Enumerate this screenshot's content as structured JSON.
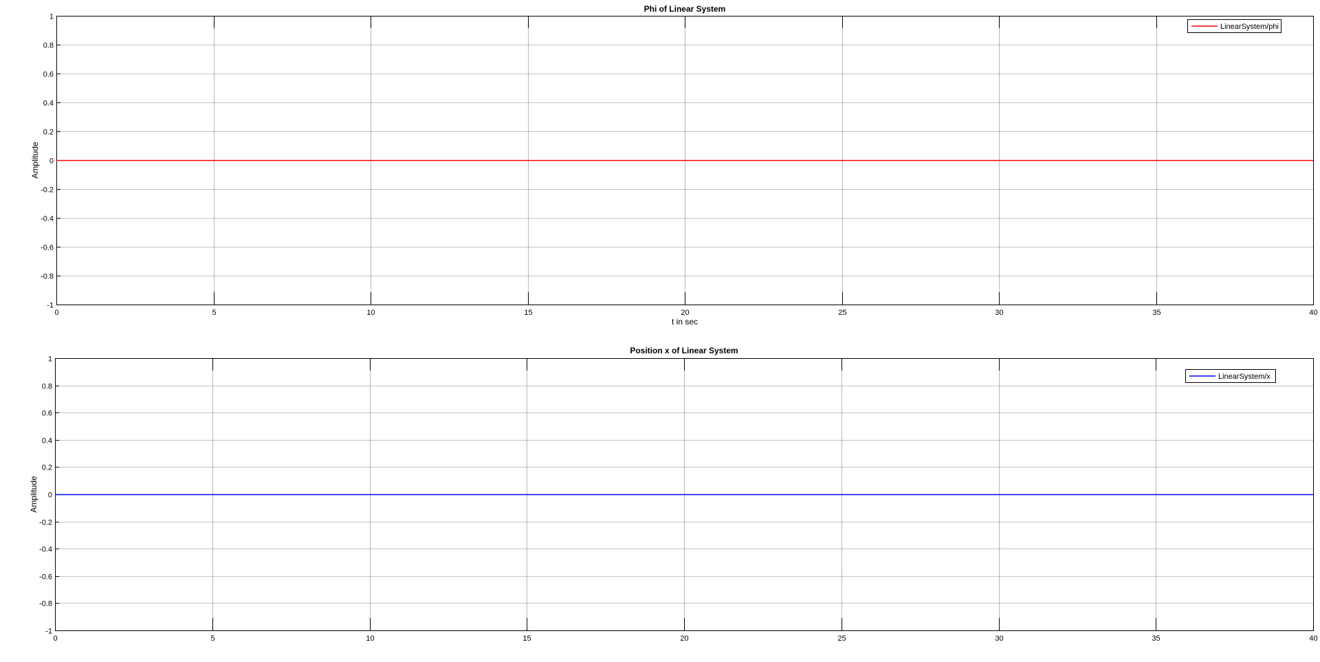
{
  "chart_data": [
    {
      "type": "line",
      "title": "Phi of Linear System",
      "xlabel": "t in sec",
      "ylabel": "Amplitude",
      "xlim": [
        0,
        40
      ],
      "ylim": [
        -1,
        1
      ],
      "x_ticks": [
        0,
        5,
        10,
        15,
        20,
        25,
        30,
        35,
        40
      ],
      "y_ticks": [
        -1,
        -0.8,
        -0.6,
        -0.4,
        -0.2,
        0,
        0.2,
        0.4,
        0.6,
        0.8,
        1
      ],
      "grid": true,
      "legend_position": "top-right",
      "series": [
        {
          "name": "LinearSystem/phi",
          "color": "#ff0000",
          "x": [
            0,
            40
          ],
          "y": [
            0,
            0
          ]
        }
      ]
    },
    {
      "type": "line",
      "title": "Position x of Linear System",
      "xlabel": "",
      "ylabel": "Amplitude",
      "xlim": [
        0,
        40
      ],
      "ylim": [
        -1,
        1
      ],
      "x_ticks": [
        0,
        5,
        10,
        15,
        20,
        25,
        30,
        35,
        40
      ],
      "y_ticks": [
        -1,
        -0.8,
        -0.6,
        -0.4,
        -0.2,
        0,
        0.2,
        0.4,
        0.6,
        0.8,
        1
      ],
      "grid": true,
      "legend_position": "top-right",
      "series": [
        {
          "name": "LinearSystem/x",
          "color": "#0000ff",
          "x": [
            0,
            40
          ],
          "y": [
            0,
            0
          ]
        }
      ]
    }
  ]
}
